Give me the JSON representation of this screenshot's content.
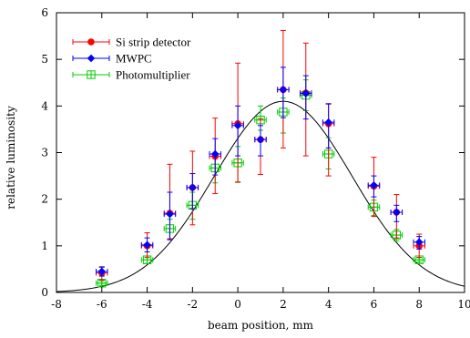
{
  "chart_data": {
    "type": "scatter",
    "xlabel": "beam position, mm",
    "ylabel": "relative luminosity",
    "xlim": [
      -8,
      10
    ],
    "ylim": [
      0,
      6
    ],
    "xticks": [
      "-8",
      "-6",
      "-4",
      "-2",
      "0",
      "2",
      "4",
      "6",
      "8",
      "10"
    ],
    "yticks": [
      "0",
      "1",
      "2",
      "3",
      "4",
      "5",
      "6"
    ],
    "grid": false,
    "legend_position": "top-left",
    "series": [
      {
        "name": "Si strip detector",
        "color": "#ff0000",
        "marker": "filled-circle",
        "x": [
          -6,
          -4,
          -3,
          -2,
          -1,
          0,
          1,
          2,
          3,
          4,
          6,
          7,
          8
        ],
        "y": [
          0.42,
          1.0,
          1.7,
          2.25,
          2.92,
          3.62,
          3.28,
          4.35,
          4.28,
          3.62,
          2.28,
          1.72,
          1.0
        ],
        "yerr_low": [
          0.15,
          0.25,
          0.55,
          0.8,
          0.8,
          1.25,
          0.75,
          1.25,
          1.35,
          1.12,
          0.65,
          0.55,
          0.25
        ],
        "yerr_high": [
          0.12,
          0.28,
          1.05,
          0.78,
          0.82,
          1.3,
          0.45,
          1.27,
          1.07,
          0.42,
          0.62,
          0.38,
          0.25
        ],
        "xerr": 0.25
      },
      {
        "name": "MWPC",
        "color": "#0000ff",
        "marker": "filled-diamond",
        "x": [
          -6,
          -4,
          -3,
          -2,
          -1,
          0,
          1,
          2,
          3,
          4,
          6,
          7,
          8
        ],
        "y": [
          0.45,
          1.02,
          1.68,
          2.25,
          2.97,
          3.58,
          3.28,
          4.35,
          4.27,
          3.65,
          2.3,
          1.72,
          1.08
        ],
        "yerr_low": [
          0.1,
          0.15,
          0.55,
          0.45,
          0.45,
          0.65,
          0.35,
          0.6,
          0.55,
          0.55,
          0.25,
          0.2,
          0.15
        ],
        "yerr_high": [
          0.1,
          0.15,
          0.47,
          0.3,
          0.33,
          0.42,
          0.3,
          0.48,
          0.38,
          0.4,
          0.2,
          0.15,
          0.12
        ],
        "xerr": 0.25
      },
      {
        "name": "Photomultiplier",
        "color": "#00cc00",
        "marker": "open-square",
        "x": [
          -6,
          -4,
          -3,
          -2,
          -1,
          0,
          1,
          2,
          3,
          4,
          6,
          7,
          8
        ],
        "y": [
          0.2,
          0.7,
          1.37,
          1.87,
          2.67,
          2.78,
          3.7,
          3.87,
          4.23,
          2.97,
          1.83,
          1.23,
          0.7
        ],
        "yerr_low": [
          0.05,
          0.08,
          0.22,
          0.3,
          0.32,
          0.42,
          0.22,
          0.45,
          0.33,
          0.32,
          0.18,
          0.13,
          0.05
        ],
        "yerr_high": [
          0.05,
          0.08,
          0.2,
          0.28,
          0.28,
          0.35,
          0.3,
          0.3,
          0.33,
          0.35,
          0.15,
          0.12,
          0.05
        ],
        "xerr": 0.25
      }
    ],
    "fit_curve": {
      "type": "gaussian",
      "color": "#000000",
      "amplitude": 4.1,
      "mean": 2.0,
      "sigma": 3.05
    }
  }
}
